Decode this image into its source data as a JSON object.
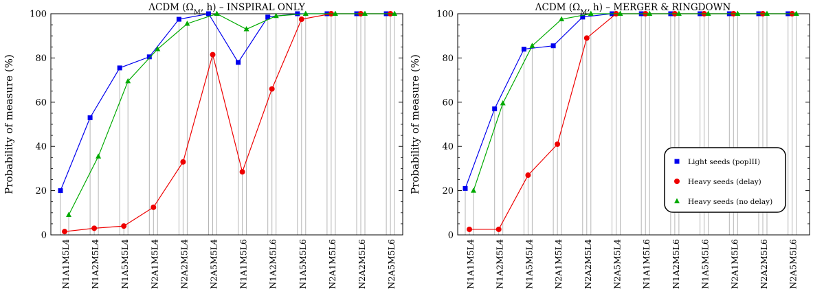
{
  "chart_data": [
    {
      "type": "line",
      "title": "ΛCDM (Ω_M, h) – INSPIRAL ONLY",
      "title_parts": {
        "prefix": "ΛCDM (Ω",
        "subscript": "M",
        "suffix": ", h) – INSPIRAL ONLY"
      },
      "ylabel": "Probability of measure (%)",
      "xlabel": "",
      "ylim": [
        0,
        100
      ],
      "yticks": [
        0,
        20,
        40,
        60,
        80,
        100
      ],
      "grid": "vertical lines at each point",
      "legend": "none",
      "categories": [
        "N1A1M5L4",
        "N1A2M5L4",
        "N1A5M5L4",
        "N2A1M5L4",
        "N2A2M5L4",
        "N2A5M5L4",
        "N1A1M5L6",
        "N1A2M5L6",
        "N1A5M5L6",
        "N2A1M5L6",
        "N2A2M5L6",
        "N2A5M5L6"
      ],
      "series": [
        {
          "name": "Light seeds (popIII)",
          "color": "#0000ee",
          "marker": "square",
          "values": [
            20,
            53,
            75.5,
            80.5,
            97.5,
            100,
            78,
            98.5,
            100,
            100,
            100,
            100
          ]
        },
        {
          "name": "Heavy seeds (delay)",
          "color": "#ee0000",
          "marker": "circle",
          "values": [
            1.5,
            3,
            4,
            12.5,
            33,
            81.5,
            28.5,
            66,
            97.5,
            100,
            100,
            100
          ]
        },
        {
          "name": "Heavy seeds (no delay)",
          "color": "#00aa00",
          "marker": "triangle",
          "values": [
            9,
            35.5,
            69.5,
            84,
            95.5,
            100,
            93,
            99,
            100,
            100,
            100,
            100
          ]
        }
      ]
    },
    {
      "type": "line",
      "title": "ΛCDM (Ω_M, h) – MERGER & RINGDOWN",
      "title_parts": {
        "prefix": "ΛCDM (Ω",
        "subscript": "M",
        "suffix": ", h) – MERGER & RINGDOWN"
      },
      "ylabel": "Probability of measure (%)",
      "xlabel": "",
      "ylim": [
        0,
        100
      ],
      "yticks": [
        0,
        20,
        40,
        60,
        80,
        100
      ],
      "grid": "vertical lines at each point",
      "legend": "bottom-right, boxed",
      "categories": [
        "N1A1M5L4",
        "N1A2M5L4",
        "N1A5M5L4",
        "N2A1M5L4",
        "N2A2M5L4",
        "N2A5M5L4",
        "N1A1M5L6",
        "N1A2M5L6",
        "N1A5M5L6",
        "N2A1M5L6",
        "N2A2M5L6",
        "N2A5M5L6"
      ],
      "series": [
        {
          "name": "Light seeds (popIII)",
          "color": "#0000ee",
          "marker": "square",
          "values": [
            21,
            57,
            84,
            85.5,
            98.5,
            100,
            100,
            100,
            100,
            100,
            100,
            100
          ]
        },
        {
          "name": "Heavy seeds (delay)",
          "color": "#ee0000",
          "marker": "circle",
          "values": [
            2.5,
            2.5,
            27,
            41,
            89,
            100,
            100,
            100,
            100,
            100,
            100,
            100
          ]
        },
        {
          "name": "Heavy seeds (no delay)",
          "color": "#00aa00",
          "marker": "triangle",
          "values": [
            20,
            59.5,
            85.5,
            97.5,
            100,
            100,
            100,
            100,
            100,
            100,
            100,
            100
          ]
        }
      ]
    }
  ]
}
